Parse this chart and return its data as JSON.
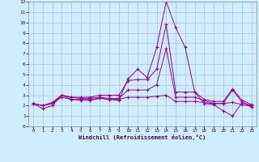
{
  "xlabel": "Windchill (Refroidissement éolien,°C)",
  "ylabel": "",
  "background_color": "#cceeff",
  "line_color": "#990099",
  "grid_color": "#bbbbcc",
  "xlim": [
    -0.5,
    23.5
  ],
  "ylim": [
    0,
    12
  ],
  "xticks": [
    0,
    1,
    2,
    3,
    4,
    5,
    6,
    7,
    8,
    9,
    10,
    11,
    12,
    13,
    14,
    15,
    16,
    17,
    18,
    19,
    20,
    21,
    22,
    23
  ],
  "yticks": [
    0,
    1,
    2,
    3,
    4,
    5,
    6,
    7,
    8,
    9,
    10,
    11,
    12
  ],
  "lines": [
    {
      "x": [
        0,
        1,
        2,
        3,
        4,
        5,
        6,
        7,
        8,
        9,
        10,
        11,
        12,
        13,
        14,
        15,
        16,
        17,
        18,
        19,
        20,
        21,
        22,
        23
      ],
      "y": [
        2.2,
        1.7,
        2.0,
        3.0,
        2.6,
        2.5,
        2.5,
        2.7,
        2.6,
        2.5,
        4.6,
        5.5,
        4.7,
        7.6,
        12.0,
        9.5,
        7.6,
        3.3,
        2.2,
        2.1,
        1.5,
        1.0,
        2.3,
        2.0
      ]
    },
    {
      "x": [
        0,
        1,
        2,
        3,
        4,
        5,
        6,
        7,
        8,
        9,
        10,
        11,
        12,
        13,
        14,
        15,
        16,
        17,
        18,
        19,
        20,
        21,
        22,
        23
      ],
      "y": [
        2.2,
        2.0,
        2.2,
        3.0,
        2.8,
        2.8,
        2.8,
        3.0,
        3.0,
        3.0,
        4.4,
        4.5,
        4.5,
        5.5,
        9.8,
        3.3,
        3.3,
        3.3,
        2.6,
        2.4,
        2.4,
        3.6,
        2.5,
        2.1
      ]
    },
    {
      "x": [
        0,
        1,
        2,
        3,
        4,
        5,
        6,
        7,
        8,
        9,
        10,
        11,
        12,
        13,
        14,
        15,
        16,
        17,
        18,
        19,
        20,
        21,
        22,
        23
      ],
      "y": [
        2.2,
        2.0,
        2.3,
        3.0,
        2.8,
        2.7,
        2.7,
        2.8,
        2.7,
        2.7,
        3.5,
        3.5,
        3.5,
        4.0,
        7.5,
        2.8,
        2.8,
        2.8,
        2.5,
        2.2,
        2.2,
        3.5,
        2.3,
        1.9
      ]
    },
    {
      "x": [
        0,
        1,
        2,
        3,
        4,
        5,
        6,
        7,
        8,
        9,
        10,
        11,
        12,
        13,
        14,
        15,
        16,
        17,
        18,
        19,
        20,
        21,
        22,
        23
      ],
      "y": [
        2.2,
        2.0,
        2.2,
        2.8,
        2.6,
        2.6,
        2.6,
        2.7,
        2.6,
        2.6,
        2.8,
        2.8,
        2.8,
        2.9,
        3.0,
        2.4,
        2.4,
        2.4,
        2.3,
        2.2,
        2.2,
        2.3,
        2.1,
        1.9
      ]
    }
  ]
}
